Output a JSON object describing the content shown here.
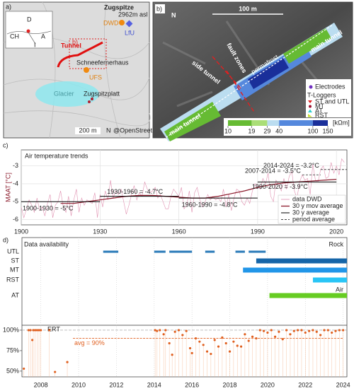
{
  "map_a": {
    "label": "a)",
    "zugspitze": "Zugspitze",
    "elevation": "2962m asl",
    "dwd": "DWD",
    "lfu": "LfU",
    "tunnel": "Tunnel",
    "ufs": "UFS",
    "glacier": "Glacier",
    "schneefernerhaus": "Schneefernerhaus",
    "zugspitzplatt": "Zugspitzplatt",
    "inset_b": "b)",
    "scale": "200 m",
    "north": "N",
    "credit": "@OpenStreetMap",
    "inset": {
      "d": "D",
      "ch": "CH",
      "a": "A",
      "i": "I"
    }
  },
  "map_b": {
    "label": "b)",
    "scale": "100 m",
    "north": "N",
    "fault_zones": "fault zones",
    "main_tunnel": "main tunnel",
    "main_tunnel_lower": "main tunnel",
    "side_tunnel": "side tunnel",
    "permafrost": "permafrost",
    "legend": {
      "electrodes": "Electrodes",
      "tloggers": "T-Loggers",
      "items": [
        "ST and UTL",
        "MT",
        "AT",
        "RST"
      ],
      "colors": [
        "#e02020",
        "#a01030",
        "#30d0d0",
        "#c8e030"
      ]
    },
    "colorbar": {
      "ticks": [
        10,
        19,
        29,
        40,
        100,
        150
      ],
      "lim": [
        10,
        150
      ],
      "log": true,
      "colors": [
        "#66bb33",
        "#aade77",
        "#bbddf0",
        "#5588dd",
        "#1a2f9a"
      ],
      "unit": "[kΩm]"
    }
  },
  "chart_data": [
    {
      "type": "line",
      "label": "c)",
      "title": "Air temperature trends",
      "ylabel": "MAAT [°C]",
      "xlim": [
        1900,
        2024
      ],
      "xticks": [
        1900,
        1930,
        1960,
        1990,
        2020
      ],
      "ylim": [
        -6.3,
        -2.1
      ],
      "yticks": [
        -6,
        -5,
        -4,
        -3
      ],
      "grid": true,
      "legend": "lower right",
      "series": [
        {
          "name": "data DWD",
          "color": "#e090b0",
          "x": [
            1900,
            1901,
            1902,
            1903,
            1904,
            1905,
            1906,
            1907,
            1908,
            1909,
            1910,
            1911,
            1912,
            1913,
            1914,
            1915,
            1916,
            1917,
            1918,
            1919,
            1920,
            1921,
            1922,
            1923,
            1924,
            1925,
            1926,
            1927,
            1928,
            1929,
            1930,
            1931,
            1932,
            1933,
            1934,
            1935,
            1936,
            1937,
            1938,
            1939,
            1940,
            1941,
            1942,
            1943,
            1944,
            1945,
            1946,
            1947,
            1948,
            1949,
            1950,
            1951,
            1952,
            1953,
            1954,
            1955,
            1956,
            1957,
            1958,
            1959,
            1960,
            1961,
            1962,
            1963,
            1964,
            1965,
            1966,
            1967,
            1968,
            1969,
            1970,
            1971,
            1972,
            1973,
            1974,
            1975,
            1976,
            1977,
            1978,
            1979,
            1980,
            1981,
            1982,
            1983,
            1984,
            1985,
            1986,
            1987,
            1988,
            1989,
            1990,
            1991,
            1992,
            1993,
            1994,
            1995,
            1996,
            1997,
            1998,
            1999,
            2000,
            2001,
            2002,
            2003,
            2004,
            2005,
            2006,
            2007,
            2008,
            2009,
            2010,
            2011,
            2012,
            2013,
            2014,
            2015,
            2016,
            2017,
            2018,
            2019,
            2020,
            2021,
            2022,
            2023
          ],
          "values": [
            -5.3,
            -5.9,
            -5.4,
            -4.9,
            -5.2,
            -5.6,
            -4.8,
            -5.5,
            -5.3,
            -5.8,
            -5.1,
            -4.6,
            -5.9,
            -5.2,
            -5.0,
            -4.4,
            -5.3,
            -5.6,
            -4.7,
            -5.8,
            -4.9,
            -4.3,
            -5.6,
            -4.8,
            -5.2,
            -4.9,
            -5.0,
            -5.1,
            -4.5,
            -5.9,
            -4.6,
            -5.3,
            -4.4,
            -4.9,
            -3.8,
            -4.8,
            -4.4,
            -4.6,
            -4.3,
            -5.0,
            -5.7,
            -5.2,
            -4.6,
            -4.1,
            -4.9,
            -4.5,
            -4.7,
            -3.9,
            -4.3,
            -4.5,
            -4.4,
            -4.2,
            -4.8,
            -4.6,
            -5.0,
            -5.4,
            -5.4,
            -4.7,
            -4.3,
            -4.5,
            -4.7,
            -4.2,
            -5.4,
            -5.2,
            -4.4,
            -5.6,
            -4.5,
            -4.2,
            -4.9,
            -5.3,
            -5.0,
            -4.6,
            -4.9,
            -4.7,
            -4.9,
            -4.8,
            -5.0,
            -4.3,
            -5.3,
            -4.6,
            -5.5,
            -4.8,
            -4.3,
            -4.4,
            -5.0,
            -5.2,
            -4.8,
            -5.1,
            -4.4,
            -4.0,
            -4.1,
            -4.3,
            -3.7,
            -4.0,
            -3.4,
            -4.7,
            -5.0,
            -3.8,
            -4.0,
            -4.4,
            -3.7,
            -4.3,
            -3.6,
            -3.3,
            -4.4,
            -4.8,
            -3.9,
            -3.5,
            -3.8,
            -3.7,
            -4.6,
            -2.9,
            -3.8,
            -3.9,
            -3.2,
            -3.0,
            -3.7,
            -3.6,
            -2.8,
            -3.4,
            -3.0,
            -3.5,
            -2.6,
            -2.8
          ]
        },
        {
          "name": "30 y mov average",
          "color": "#8b1a2b",
          "x": [
            1915,
            1920,
            1925,
            1930,
            1935,
            1940,
            1945,
            1950,
            1955,
            1960,
            1965,
            1970,
            1975,
            1980,
            1985,
            1990,
            1995,
            2000,
            2005,
            2010,
            2015,
            2020
          ],
          "values": [
            -5.1,
            -5.1,
            -5.0,
            -4.9,
            -4.8,
            -4.7,
            -4.65,
            -4.65,
            -4.7,
            -4.75,
            -4.8,
            -4.8,
            -4.7,
            -4.55,
            -4.4,
            -4.2,
            -4.05,
            -3.95,
            -3.9,
            -3.85,
            -3.8,
            -3.75
          ]
        }
      ],
      "averages": {
        "name": "30 y average",
        "color": "#000000",
        "start": [
          1900,
          1930,
          1960,
          1990
        ],
        "end": [
          1930,
          1960,
          1990,
          2020
        ],
        "values": [
          -5,
          -4.7,
          -4.8,
          -3.9
        ],
        "value_labels": [
          "1900-1930 = -5°C",
          "1930-1960 = -4.7°C",
          "1960-1990 = -4.8°C",
          "1990-2020 = -3.9°C"
        ]
      },
      "period_averages": {
        "name": "period average",
        "color": "#444444",
        "start": [
          2007,
          2014
        ],
        "end": [
          2014,
          2024
        ],
        "values": [
          -3.5,
          -3.2
        ],
        "value_labels": [
          "2007-2014 = -3.5°C",
          "2014-2024 = -3.2°C"
        ]
      }
    },
    {
      "type": "availability",
      "label": "d)",
      "title": "Data availability",
      "xlim": [
        2007,
        2024.2
      ],
      "xticks": [
        2008,
        2010,
        2012,
        2014,
        2016,
        2018,
        2020,
        2022,
        2024
      ],
      "grid": true,
      "categories": [
        "UTL",
        "ST",
        "MT",
        "RST",
        "AT"
      ],
      "colors": [
        "#2a7ab8",
        "#1565a8",
        "#2196e8",
        "#29c5f6",
        "#66cc22"
      ],
      "intervals": [
        [
          [
            2011.3,
            2012.1
          ],
          [
            2014.0,
            2014.6
          ],
          [
            2014.8,
            2016.0
          ],
          [
            2016.7,
            2017.2
          ],
          [
            2018.3,
            2018.8
          ],
          [
            2019.0,
            2019.9
          ]
        ],
        [
          [
            2019.4,
            2024.2
          ]
        ],
        [
          [
            2018.7,
            2024.2
          ]
        ],
        [
          [
            2022.4,
            2024.2
          ]
        ],
        [
          [
            2020.1,
            2024.2
          ]
        ]
      ],
      "annotations": {
        "rock": "Rock",
        "air": "Air"
      },
      "ert": {
        "name": "ERT",
        "color": "#e06020",
        "ylim": [
          43,
          106
        ],
        "yticks": [
          {
            "value": 50,
            "label": "50%"
          },
          {
            "value": 75,
            "label": "75%"
          },
          {
            "value": 100,
            "label": "100%"
          }
        ],
        "reference": 100,
        "average": 90,
        "average_label": "avg = 90%",
        "x": [
          2007.1,
          2007.35,
          2007.45,
          2007.55,
          2007.6,
          2007.7,
          2007.8,
          2007.9,
          2008.0,
          2008.45,
          2008.75,
          2009.4,
          2014.05,
          2014.15,
          2014.3,
          2014.5,
          2014.6,
          2014.8,
          2014.95,
          2015.1,
          2015.3,
          2015.5,
          2015.7,
          2015.9,
          2016.0,
          2016.2,
          2016.4,
          2016.6,
          2016.8,
          2017.0,
          2017.2,
          2017.4,
          2017.6,
          2017.8,
          2018.0,
          2018.2,
          2018.4,
          2018.6,
          2018.8,
          2019.0,
          2019.2,
          2019.4,
          2019.6,
          2019.8,
          2020.0,
          2020.2,
          2020.4,
          2020.6,
          2020.8,
          2021.0,
          2021.2,
          2021.4,
          2021.6,
          2021.8,
          2022.0,
          2022.2,
          2022.4,
          2022.6,
          2022.8,
          2023.0,
          2023.2,
          2023.4,
          2023.6,
          2023.8,
          2024.0
        ],
        "values": [
          53,
          100,
          100,
          88,
          100,
          100,
          100,
          100,
          100,
          100,
          49,
          61,
          100,
          99,
          100,
          95,
          100,
          84,
          70,
          98,
          100,
          94,
          99,
          78,
          72,
          90,
          86,
          82,
          74,
          71,
          88,
          80,
          91,
          84,
          74,
          86,
          81,
          80,
          95,
          87,
          92,
          90,
          100,
          99,
          97,
          100,
          92,
          98,
          89,
          100,
          95,
          99,
          100,
          100,
          97,
          99,
          100,
          98,
          94,
          100,
          100,
          97,
          99,
          100,
          100
        ]
      }
    }
  ]
}
